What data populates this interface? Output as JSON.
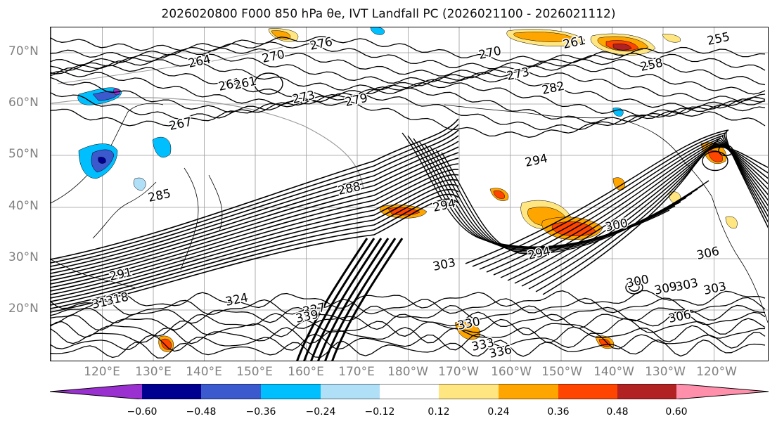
{
  "title": "2026020800 F000 850 hPa θe, IVT Landfall PC (2026021100 - 2026021112)",
  "lat_labels": [
    "70°N",
    "60°N",
    "50°N",
    "40°N",
    "30°N",
    "20°N"
  ],
  "lon_labels": [
    "120°E",
    "130°E",
    "140°E",
    "150°E",
    "160°E",
    "170°E",
    "180°W",
    "170°W",
    "160°W",
    "150°W",
    "140°W",
    "130°W",
    "120°W"
  ],
  "contour_labels": [
    "276",
    "264",
    "261",
    "270",
    "273",
    "279",
    "261",
    "261",
    "255",
    "258",
    "270",
    "273",
    "282",
    "267",
    "294",
    "288",
    "294",
    "300",
    "294",
    "303",
    "306",
    "303",
    "309",
    "306",
    "300",
    "303",
    "312",
    "318",
    "324",
    "327",
    "330",
    "333",
    "336",
    "339",
    "291",
    "285"
  ],
  "colorbar": {
    "colors": [
      "#9b30d0",
      "#000090",
      "#3a5acd",
      "#00bfff",
      "#b0e0f8",
      "#ffffff",
      "#ffe680",
      "#ffa500",
      "#ff4500",
      "#b22222",
      "#ff8fab"
    ],
    "ticks": [
      "−0.60",
      "−0.48",
      "−0.36",
      "−0.24",
      "−0.12",
      "0.12",
      "0.24",
      "0.36",
      "0.48",
      "0.60"
    ]
  },
  "shading_colors": {
    "light_blue": "#b0e0f8",
    "blue": "#00bfff",
    "mid_blue": "#3a5acd",
    "navy": "#000090",
    "purple": "#9b30d0",
    "yellow": "#ffe680",
    "orange": "#ffa500",
    "red_orange": "#ff4500",
    "dark_red": "#b22222"
  }
}
